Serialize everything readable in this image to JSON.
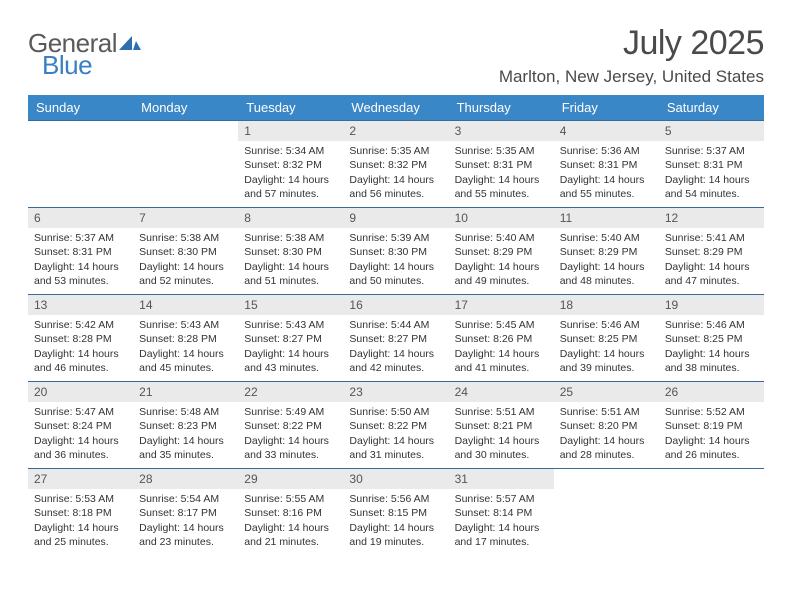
{
  "logo": {
    "text1": "General",
    "text2": "Blue"
  },
  "title": "July 2025",
  "location": "Marlton, New Jersey, United States",
  "colors": {
    "header_bg": "#3a87c7",
    "week_border": "#3a6a9a",
    "daynum_bg": "#eaeaea",
    "logo_gray": "#5a5a5a",
    "logo_blue": "#3a7fc4"
  },
  "weekdays": [
    "Sunday",
    "Monday",
    "Tuesday",
    "Wednesday",
    "Thursday",
    "Friday",
    "Saturday"
  ],
  "weeks": [
    [
      null,
      null,
      {
        "n": "1",
        "sr": "5:34 AM",
        "ss": "8:32 PM",
        "dl": "14 hours and 57 minutes."
      },
      {
        "n": "2",
        "sr": "5:35 AM",
        "ss": "8:32 PM",
        "dl": "14 hours and 56 minutes."
      },
      {
        "n": "3",
        "sr": "5:35 AM",
        "ss": "8:31 PM",
        "dl": "14 hours and 55 minutes."
      },
      {
        "n": "4",
        "sr": "5:36 AM",
        "ss": "8:31 PM",
        "dl": "14 hours and 55 minutes."
      },
      {
        "n": "5",
        "sr": "5:37 AM",
        "ss": "8:31 PM",
        "dl": "14 hours and 54 minutes."
      }
    ],
    [
      {
        "n": "6",
        "sr": "5:37 AM",
        "ss": "8:31 PM",
        "dl": "14 hours and 53 minutes."
      },
      {
        "n": "7",
        "sr": "5:38 AM",
        "ss": "8:30 PM",
        "dl": "14 hours and 52 minutes."
      },
      {
        "n": "8",
        "sr": "5:38 AM",
        "ss": "8:30 PM",
        "dl": "14 hours and 51 minutes."
      },
      {
        "n": "9",
        "sr": "5:39 AM",
        "ss": "8:30 PM",
        "dl": "14 hours and 50 minutes."
      },
      {
        "n": "10",
        "sr": "5:40 AM",
        "ss": "8:29 PM",
        "dl": "14 hours and 49 minutes."
      },
      {
        "n": "11",
        "sr": "5:40 AM",
        "ss": "8:29 PM",
        "dl": "14 hours and 48 minutes."
      },
      {
        "n": "12",
        "sr": "5:41 AM",
        "ss": "8:29 PM",
        "dl": "14 hours and 47 minutes."
      }
    ],
    [
      {
        "n": "13",
        "sr": "5:42 AM",
        "ss": "8:28 PM",
        "dl": "14 hours and 46 minutes."
      },
      {
        "n": "14",
        "sr": "5:43 AM",
        "ss": "8:28 PM",
        "dl": "14 hours and 45 minutes."
      },
      {
        "n": "15",
        "sr": "5:43 AM",
        "ss": "8:27 PM",
        "dl": "14 hours and 43 minutes."
      },
      {
        "n": "16",
        "sr": "5:44 AM",
        "ss": "8:27 PM",
        "dl": "14 hours and 42 minutes."
      },
      {
        "n": "17",
        "sr": "5:45 AM",
        "ss": "8:26 PM",
        "dl": "14 hours and 41 minutes."
      },
      {
        "n": "18",
        "sr": "5:46 AM",
        "ss": "8:25 PM",
        "dl": "14 hours and 39 minutes."
      },
      {
        "n": "19",
        "sr": "5:46 AM",
        "ss": "8:25 PM",
        "dl": "14 hours and 38 minutes."
      }
    ],
    [
      {
        "n": "20",
        "sr": "5:47 AM",
        "ss": "8:24 PM",
        "dl": "14 hours and 36 minutes."
      },
      {
        "n": "21",
        "sr": "5:48 AM",
        "ss": "8:23 PM",
        "dl": "14 hours and 35 minutes."
      },
      {
        "n": "22",
        "sr": "5:49 AM",
        "ss": "8:22 PM",
        "dl": "14 hours and 33 minutes."
      },
      {
        "n": "23",
        "sr": "5:50 AM",
        "ss": "8:22 PM",
        "dl": "14 hours and 31 minutes."
      },
      {
        "n": "24",
        "sr": "5:51 AM",
        "ss": "8:21 PM",
        "dl": "14 hours and 30 minutes."
      },
      {
        "n": "25",
        "sr": "5:51 AM",
        "ss": "8:20 PM",
        "dl": "14 hours and 28 minutes."
      },
      {
        "n": "26",
        "sr": "5:52 AM",
        "ss": "8:19 PM",
        "dl": "14 hours and 26 minutes."
      }
    ],
    [
      {
        "n": "27",
        "sr": "5:53 AM",
        "ss": "8:18 PM",
        "dl": "14 hours and 25 minutes."
      },
      {
        "n": "28",
        "sr": "5:54 AM",
        "ss": "8:17 PM",
        "dl": "14 hours and 23 minutes."
      },
      {
        "n": "29",
        "sr": "5:55 AM",
        "ss": "8:16 PM",
        "dl": "14 hours and 21 minutes."
      },
      {
        "n": "30",
        "sr": "5:56 AM",
        "ss": "8:15 PM",
        "dl": "14 hours and 19 minutes."
      },
      {
        "n": "31",
        "sr": "5:57 AM",
        "ss": "8:14 PM",
        "dl": "14 hours and 17 minutes."
      },
      null,
      null
    ]
  ],
  "labels": {
    "sunrise": "Sunrise:",
    "sunset": "Sunset:",
    "daylight": "Daylight:"
  }
}
